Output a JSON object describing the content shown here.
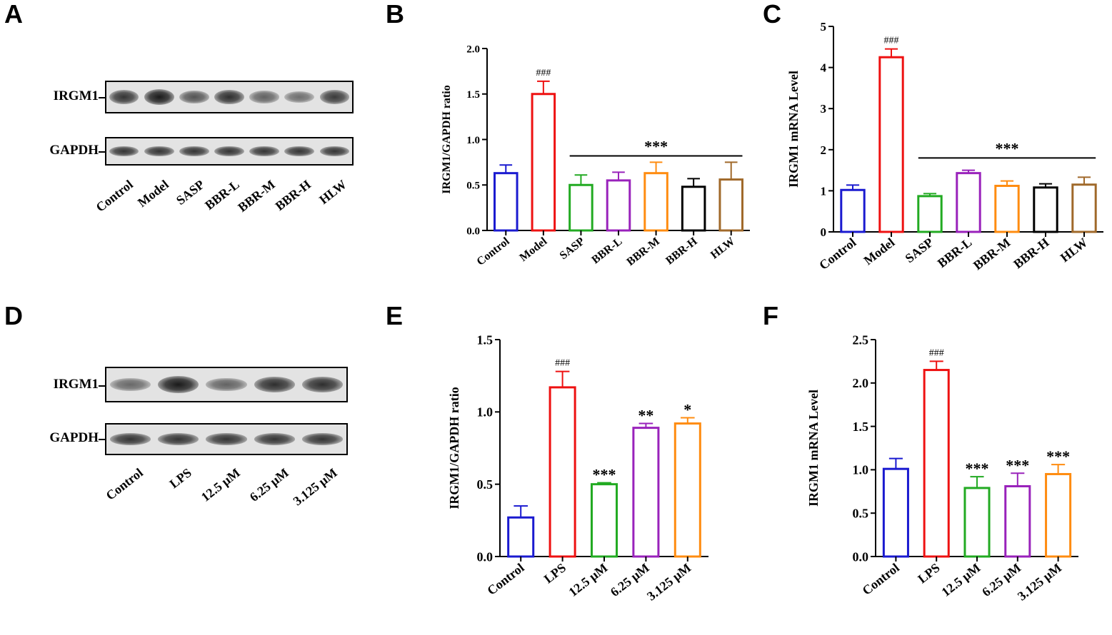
{
  "panels": {
    "A": "A",
    "B": "B",
    "C": "C",
    "D": "D",
    "E": "E",
    "F": "F"
  },
  "blots": {
    "top": {
      "rows": [
        {
          "label": "IRGM1",
          "intensities": [
            0.8,
            1.0,
            0.55,
            0.85,
            0.45,
            0.35,
            0.75
          ]
        },
        {
          "label": "GAPDH",
          "intensities": [
            0.8,
            0.8,
            0.8,
            0.8,
            0.8,
            0.8,
            0.8
          ]
        }
      ],
      "lanes": [
        "Control",
        "Model",
        "SASP",
        "BBR-L",
        "BBR-M",
        "BBR-H",
        "HLW"
      ]
    },
    "bottom": {
      "rows": [
        {
          "label": "IRGM1",
          "intensities": [
            0.4,
            1.0,
            0.45,
            0.85,
            0.85
          ]
        },
        {
          "label": "GAPDH",
          "intensities": [
            0.8,
            0.8,
            0.8,
            0.8,
            0.8
          ]
        }
      ],
      "lanes": [
        "Control",
        "LPS",
        "12.5 μM",
        "6.25 μM",
        "3.125 μM"
      ]
    }
  },
  "chart_data": [
    {
      "panel": "B",
      "type": "bar",
      "title": "",
      "xlabel": "",
      "ylabel": "IRGM1/GAPDH ratio",
      "ylim": [
        0,
        2.0
      ],
      "yticks": [
        "0.0",
        "0.5",
        "1.0",
        "1.5",
        "2.0"
      ],
      "categories": [
        "Control",
        "Model",
        "SASP",
        "BBR-L",
        "BBR-M",
        "BBR-H",
        "HLW"
      ],
      "values": [
        0.63,
        1.5,
        0.5,
        0.55,
        0.63,
        0.48,
        0.56
      ],
      "errors": [
        0.09,
        0.14,
        0.11,
        0.09,
        0.12,
        0.09,
        0.19
      ],
      "colors": [
        "#1a1ad0",
        "#ee1111",
        "#22aa22",
        "#9922bb",
        "#ff8c10",
        "#000000",
        "#a0692a"
      ],
      "annotations": [
        {
          "index": 1,
          "text": "###"
        }
      ],
      "bracket": {
        "from": 2,
        "to": 6,
        "y": 0.82,
        "text": "***"
      }
    },
    {
      "panel": "C",
      "type": "bar",
      "title": "",
      "xlabel": "",
      "ylabel": "IRGM1 mRNA Level",
      "ylim": [
        0,
        5
      ],
      "yticks": [
        "0",
        "1",
        "2",
        "3",
        "4",
        "5"
      ],
      "categories": [
        "Control",
        "Model",
        "SASP",
        "BBR-L",
        "BBR-M",
        "BBR-H",
        "HLW"
      ],
      "values": [
        1.02,
        4.25,
        0.87,
        1.43,
        1.12,
        1.08,
        1.15
      ],
      "errors": [
        0.12,
        0.2,
        0.06,
        0.07,
        0.12,
        0.09,
        0.18
      ],
      "colors": [
        "#1a1ad0",
        "#ee1111",
        "#22aa22",
        "#9922bb",
        "#ff8c10",
        "#000000",
        "#a0692a"
      ],
      "annotations": [
        {
          "index": 1,
          "text": "###"
        }
      ],
      "bracket": {
        "from": 2,
        "to": 6,
        "y": 1.8,
        "text": "***"
      }
    },
    {
      "panel": "E",
      "type": "bar",
      "title": "",
      "xlabel": "",
      "ylabel": "IRGM1/GAPDH ratio",
      "ylim": [
        0,
        1.5
      ],
      "yticks": [
        "0.0",
        "0.5",
        "1.0",
        "1.5"
      ],
      "categories": [
        "Control",
        "LPS",
        "12.5 μM",
        "6.25 μM",
        "3.125 μM"
      ],
      "values": [
        0.27,
        1.17,
        0.5,
        0.89,
        0.92
      ],
      "errors": [
        0.08,
        0.11,
        0.01,
        0.03,
        0.04
      ],
      "colors": [
        "#1a1ad0",
        "#ee1111",
        "#22aa22",
        "#9922bb",
        "#ff8c10"
      ],
      "annotations": [
        {
          "index": 1,
          "text": "###"
        },
        {
          "index": 2,
          "text": "***"
        },
        {
          "index": 3,
          "text": "**"
        },
        {
          "index": 4,
          "text": "*"
        }
      ],
      "bracket": null
    },
    {
      "panel": "F",
      "type": "bar",
      "title": "",
      "xlabel": "",
      "ylabel": "IRGM1 mRNA Level",
      "ylim": [
        0,
        2.5
      ],
      "yticks": [
        "0.0",
        "0.5",
        "1.0",
        "1.5",
        "2.0",
        "2.5"
      ],
      "categories": [
        "Control",
        "LPS",
        "12.5 μM",
        "6.25 μM",
        "3.125 μM"
      ],
      "values": [
        1.01,
        2.15,
        0.79,
        0.81,
        0.95
      ],
      "errors": [
        0.12,
        0.1,
        0.13,
        0.15,
        0.11
      ],
      "colors": [
        "#1a1ad0",
        "#ee1111",
        "#22aa22",
        "#9922bb",
        "#ff8c10"
      ],
      "annotations": [
        {
          "index": 1,
          "text": "###"
        },
        {
          "index": 2,
          "text": "***"
        },
        {
          "index": 3,
          "text": "***"
        },
        {
          "index": 4,
          "text": "***"
        }
      ],
      "bracket": null
    }
  ]
}
